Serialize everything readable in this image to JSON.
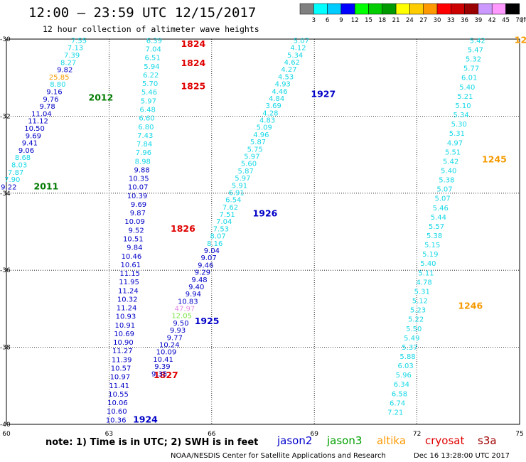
{
  "title": "12:00 – 23:59 UTC 12/15/2017",
  "subtitle": "12 hour collection of altimeter wave heights",
  "note": "note:  1) Time is in UTC; 2) SWH is in feet",
  "credit": "NOAA/NESDIS Center for Satellite Applications and Research",
  "generated": "Dec 16 13:28:00 UTC 2017",
  "satellites": [
    {
      "name": "jason2",
      "color": "#0000cc"
    },
    {
      "name": "jason3",
      "color": "#00a000"
    },
    {
      "name": "altika",
      "color": "#ff9900"
    },
    {
      "name": "cryosat",
      "color": "#e00000"
    },
    {
      "name": "s3a",
      "color": "#a00000"
    }
  ],
  "color_scale": {
    "unit": "(ft)",
    "labels": [
      "3",
      "6",
      "9",
      "12",
      "15",
      "18",
      "21",
      "24",
      "27",
      "30",
      "33",
      "36",
      "39",
      "42",
      "45",
      "70"
    ],
    "colors": [
      "#808080",
      "#00ffff",
      "#00ccff",
      "#0000ff",
      "#00ff00",
      "#00cc00",
      "#009900",
      "#ffff00",
      "#ffcc00",
      "#ff9900",
      "#ff0000",
      "#cc0000",
      "#990000",
      "#cc99ff",
      "#ff99ff",
      "#000000"
    ]
  },
  "chart_data": {
    "type": "scatter",
    "title": "12:00 – 23:59 UTC 12/15/2017",
    "xlim": [
      60,
      75
    ],
    "ylim": [
      -40,
      -30
    ],
    "x_ticks": [
      "60",
      "63",
      "66",
      "69",
      "72",
      "75"
    ],
    "y_ticks": [
      "-30",
      "-32",
      "-34",
      "-36",
      "-38",
      "-40"
    ],
    "grid": true,
    "tracks": [
      {
        "name": "jason2 track A",
        "satellite": "jason2",
        "x_start": 62.35,
        "y_start": -30.1,
        "x_end": 60.3,
        "y_end": -33.9,
        "values": [
          "7.55",
          "7.13",
          "7.39",
          "8.27",
          "9.82",
          "25.85",
          "8.80",
          "9.16",
          "9.76",
          "9.78",
          "11.04",
          "11.12",
          "10.50",
          "9.69",
          "9.41",
          "9.06",
          "8.68",
          "8.03",
          "7.87",
          "7.90",
          "9.22"
        ],
        "colors": [
          "c",
          "c",
          "c",
          "c",
          "b",
          "o",
          "c",
          "b",
          "b",
          "b",
          "b",
          "b",
          "b",
          "b",
          "b",
          "b",
          "c",
          "c",
          "c",
          "c",
          "b"
        ],
        "time_labels": [
          {
            "text": "2012",
            "color": "g",
            "x": 62.4,
            "y": -31.6
          },
          {
            "text": "2011",
            "color": "g",
            "x": 60.8,
            "y": -33.9
          }
        ]
      },
      {
        "name": "cryosat/jason2 track B",
        "satellite": "jason2",
        "x_start": 64.55,
        "y_start": -30.1,
        "x_end": 63.5,
        "y_end": -39.95,
        "values": [
          "6.39",
          "7.04",
          "6.51",
          "5.94",
          "6.22",
          "5.70",
          "5.46",
          "5.97",
          "6.48",
          "6.60",
          "6.80",
          "7.43",
          "7.84",
          "7.96",
          "8.98",
          "9.88",
          "10.35",
          "10.07",
          "10.39",
          "9.69",
          "9.87",
          "10.09",
          "9.52",
          "10.51",
          "9.84",
          "10.46",
          "10.61",
          "11.15",
          "11.95",
          "11.24",
          "10.32",
          "11.24",
          "10.93",
          "10.91",
          "10.69",
          "10.90",
          "11.27",
          "11.39",
          "10.57",
          "10.97",
          "11.41",
          "10.55",
          "10.06",
          "10.60",
          "10.36"
        ],
        "colors": [
          "c",
          "c",
          "c",
          "c",
          "c",
          "c",
          "c",
          "c",
          "c",
          "c",
          "c",
          "c",
          "c",
          "c",
          "c",
          "b",
          "b",
          "b",
          "b",
          "b",
          "b",
          "b",
          "b",
          "b",
          "b",
          "b",
          "b",
          "b",
          "b",
          "b",
          "b",
          "b",
          "b",
          "b",
          "b",
          "b",
          "b",
          "b",
          "b",
          "b",
          "b",
          "b",
          "b",
          "b",
          "b"
        ],
        "time_labels": [
          {
            "text": "1824",
            "color": "r",
            "x": 65.1,
            "y": -30.2
          },
          {
            "text": "1824",
            "color": "r",
            "x": 65.1,
            "y": -30.7
          },
          {
            "text": "1825",
            "color": "r",
            "x": 65.1,
            "y": -31.3
          },
          {
            "text": "1826",
            "color": "r",
            "x": 64.8,
            "y": -35.0
          },
          {
            "text": "1827",
            "color": "r",
            "x": 64.3,
            "y": -38.8
          },
          {
            "text": "1924",
            "color": "b",
            "x": 63.7,
            "y": -39.95
          }
        ]
      },
      {
        "name": "jason2 track C",
        "satellite": "jason2",
        "x_start": 68.85,
        "y_start": -30.1,
        "x_end": 64.7,
        "y_end": -38.75,
        "values": [
          "5.07",
          "4.12",
          "5.34",
          "4.62",
          "4.27",
          "4.53",
          "4.93",
          "4.46",
          "4.84",
          "3.69",
          "4.28",
          "4.83",
          "5.09",
          "4.96",
          "5.87",
          "5.75",
          "5.97",
          "5.60",
          "5.87",
          "5.97",
          "5.91",
          "6.91",
          "6.54",
          "7.62",
          "7.51",
          "7.04",
          "7.53",
          "8.07",
          "8.16",
          "9.04",
          "9.07",
          "9.46",
          "9.29",
          "9.48",
          "9.40",
          "9.94",
          "10.83",
          "47.97",
          "12.05",
          "9.50",
          "9.93",
          "9.77",
          "10.24",
          "10.09",
          "10.41",
          "9.39",
          "9.35"
        ],
        "colors": [
          "c",
          "c",
          "c",
          "c",
          "c",
          "c",
          "c",
          "c",
          "c",
          "c",
          "c",
          "c",
          "c",
          "c",
          "c",
          "c",
          "c",
          "c",
          "c",
          "c",
          "c",
          "c",
          "c",
          "c",
          "c",
          "c",
          "c",
          "c",
          "c",
          "b",
          "b",
          "b",
          "b",
          "b",
          "b",
          "b",
          "b",
          "p",
          "l",
          "b",
          "b",
          "b",
          "b",
          "b",
          "b",
          "b",
          "b"
        ],
        "time_labels": [
          {
            "text": "1927",
            "color": "b",
            "x": 68.9,
            "y": -31.5
          },
          {
            "text": "1926",
            "color": "b",
            "x": 67.2,
            "y": -34.6
          },
          {
            "text": "1925",
            "color": "b",
            "x": 65.5,
            "y": -37.4
          }
        ]
      },
      {
        "name": "altika track D",
        "satellite": "altika",
        "x_start": 74.0,
        "y_start": -30.1,
        "x_end": 71.6,
        "y_end": -39.75,
        "values": [
          "5.42",
          "5.47",
          "5.32",
          "5.77",
          "6.01",
          "5.40",
          "5.21",
          "5.10",
          "5.34",
          "5.30",
          "5.31",
          "4.97",
          "5.51",
          "5.42",
          "5.40",
          "5.38",
          "5.07",
          "5.07",
          "5.46",
          "5.44",
          "5.57",
          "5.38",
          "5.15",
          "5.19",
          "5.40",
          "5.11",
          "4.78",
          "5.31",
          "5.12",
          "5.23",
          "5.22",
          "5.50",
          "5.49",
          "5.37",
          "5.88",
          "6.03",
          "5.96",
          "6.34",
          "6.58",
          "6.74",
          "7.21"
        ],
        "colors": [
          "c",
          "c",
          "c",
          "c",
          "c",
          "c",
          "c",
          "c",
          "c",
          "c",
          "c",
          "c",
          "c",
          "c",
          "c",
          "c",
          "c",
          "c",
          "c",
          "c",
          "c",
          "c",
          "c",
          "c",
          "c",
          "c",
          "c",
          "c",
          "c",
          "c",
          "c",
          "c",
          "c",
          "c",
          "c",
          "c",
          "c",
          "c",
          "c",
          "c",
          "c"
        ],
        "time_labels": [
          {
            "text": "12",
            "color": "o",
            "x": 74.85,
            "y": -30.1
          },
          {
            "text": "1245",
            "color": "o",
            "x": 73.9,
            "y": -33.2
          },
          {
            "text": "1246",
            "color": "o",
            "x": 73.2,
            "y": -37.0
          }
        ]
      }
    ]
  }
}
